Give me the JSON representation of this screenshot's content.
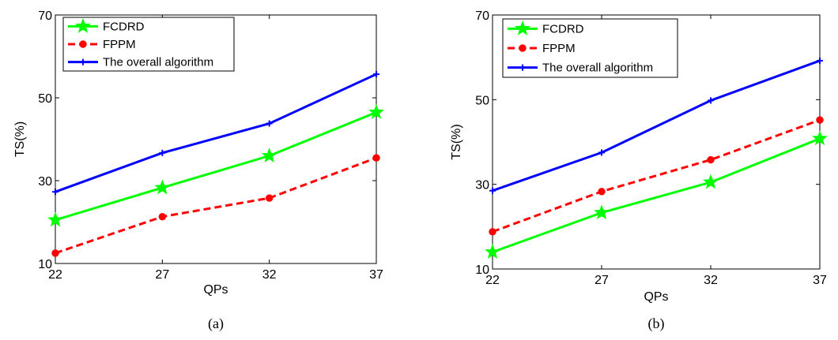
{
  "chart_data": [
    {
      "type": "line",
      "caption": "(a)",
      "xlabel": "QPs",
      "ylabel": "TS(%)",
      "x": [
        22,
        27,
        32,
        37
      ],
      "xticks": [
        "22",
        "27",
        "32",
        "37"
      ],
      "ylim": [
        10,
        70
      ],
      "yticks": [
        "10",
        "30",
        "50",
        "70"
      ],
      "grid": false,
      "legend_position": "top-left",
      "series": [
        {
          "name": "FCDRD",
          "values": [
            20.5,
            28.3,
            36.0,
            46.5
          ],
          "color": "#00ff00",
          "marker": "star",
          "dash": "solid"
        },
        {
          "name": "FPPM",
          "values": [
            12.5,
            21.3,
            25.8,
            35.5
          ],
          "color": "#ff0000",
          "marker": "circle",
          "dash": "dashed"
        },
        {
          "name": "The overall algorithm",
          "values": [
            27.3,
            36.7,
            43.8,
            55.7
          ],
          "color": "#0000ff",
          "marker": "plus",
          "dash": "solid"
        }
      ]
    },
    {
      "type": "line",
      "caption": "(b)",
      "xlabel": "QPs",
      "ylabel": "TS(%)",
      "x": [
        22,
        27,
        32,
        37
      ],
      "xticks": [
        "22",
        "27",
        "32",
        "37"
      ],
      "ylim": [
        10,
        70
      ],
      "yticks": [
        "10",
        "30",
        "50",
        "70"
      ],
      "grid": false,
      "legend_position": "top-left",
      "series": [
        {
          "name": "FCDRD",
          "values": [
            14.0,
            23.3,
            30.5,
            40.8
          ],
          "color": "#00ff00",
          "marker": "star",
          "dash": "solid"
        },
        {
          "name": "FPPM",
          "values": [
            18.8,
            28.3,
            35.8,
            45.2
          ],
          "color": "#ff0000",
          "marker": "circle",
          "dash": "dashed"
        },
        {
          "name": "The overall algorithm",
          "values": [
            28.5,
            37.5,
            49.8,
            59.2
          ],
          "color": "#0000ff",
          "marker": "plus",
          "dash": "solid"
        }
      ]
    }
  ]
}
